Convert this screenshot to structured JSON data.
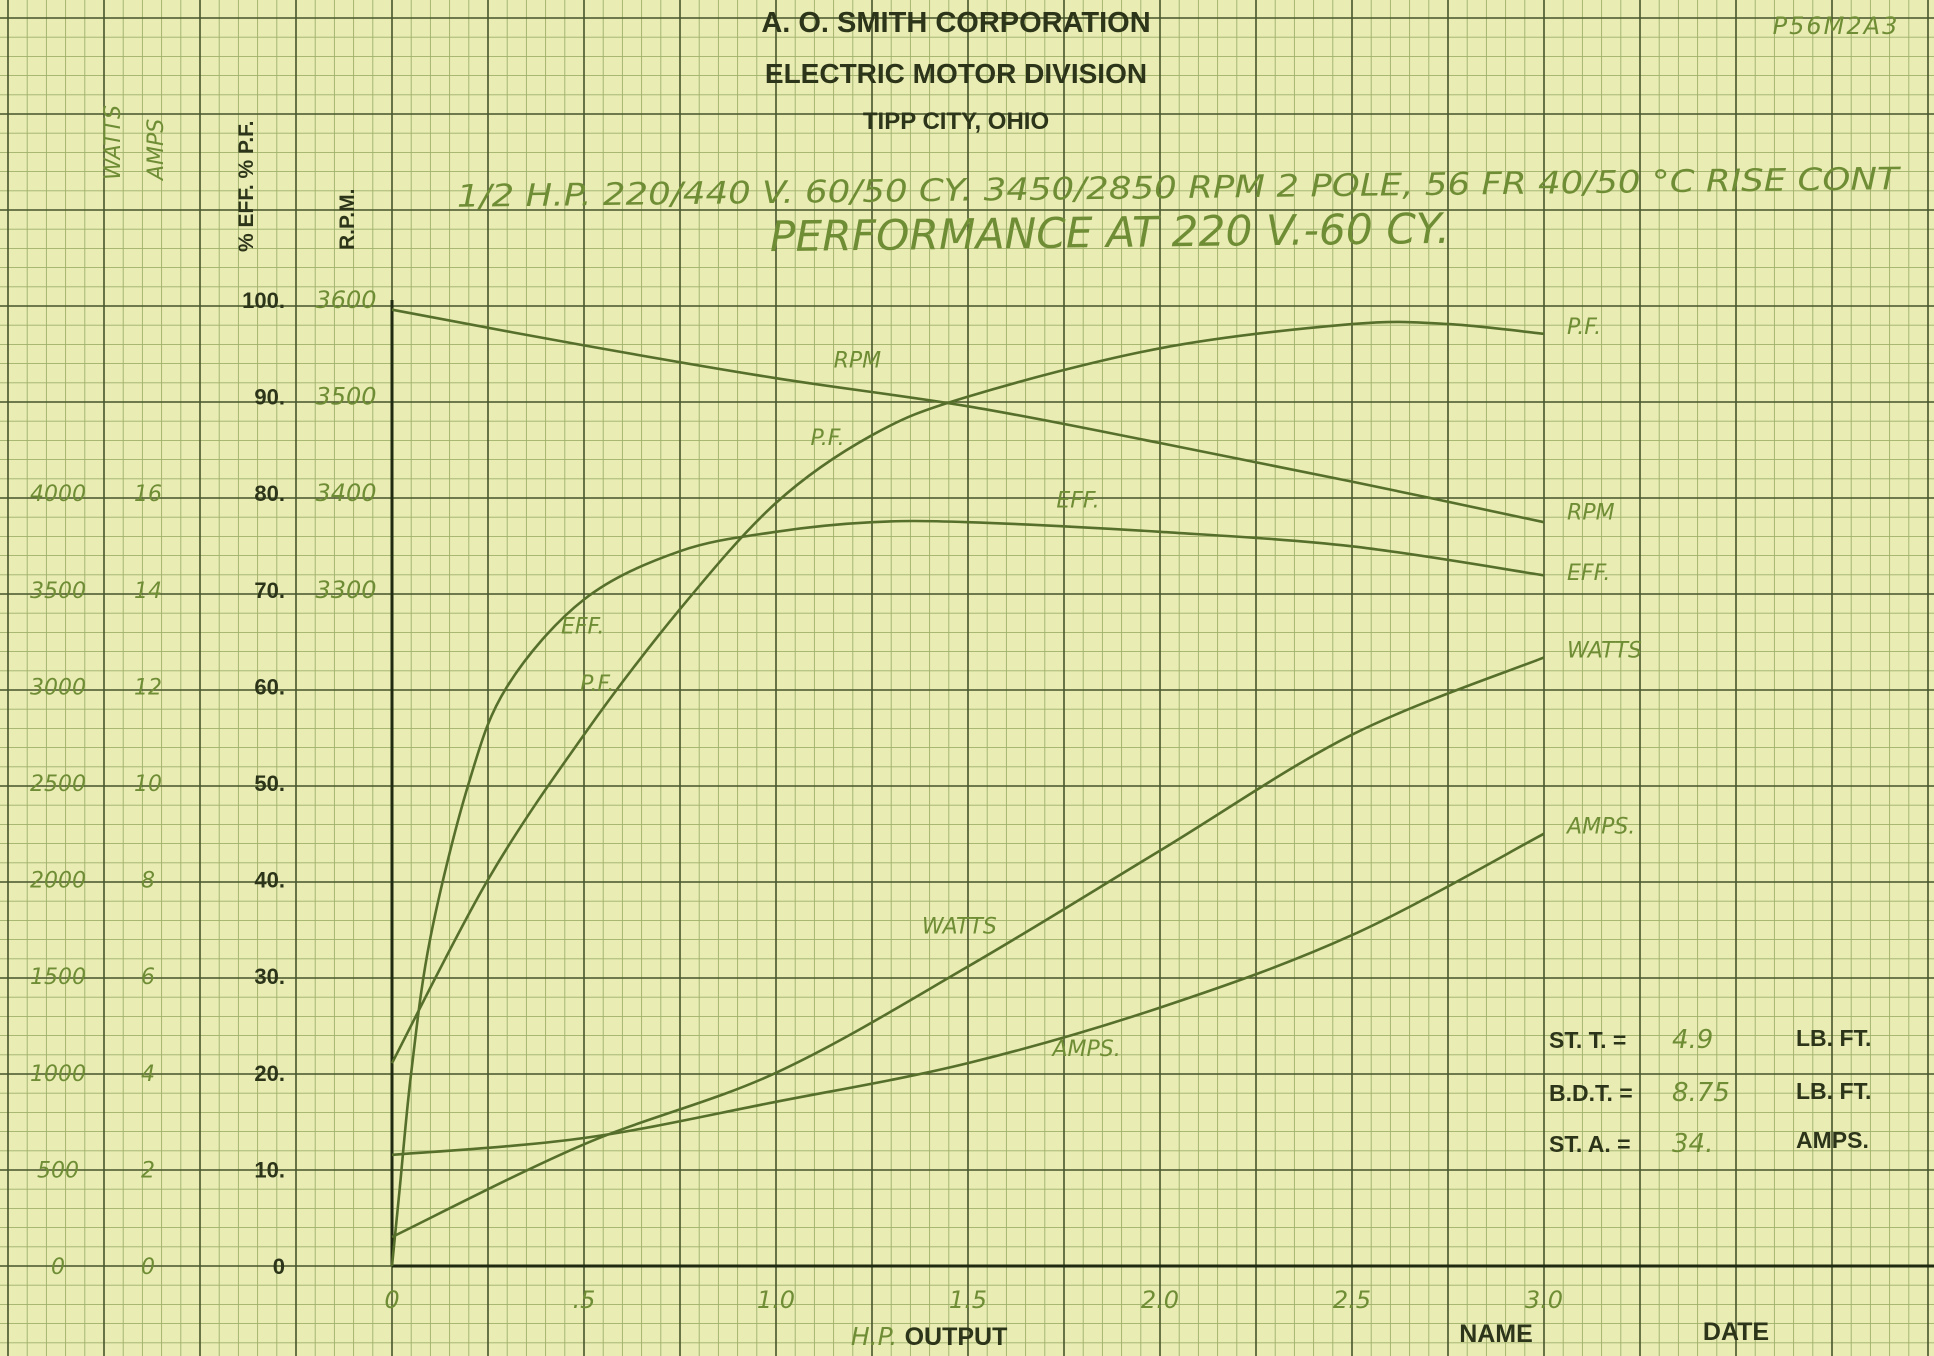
{
  "header": {
    "company": "A. O. SMITH CORPORATION",
    "division": "ELECTRIC MOTOR DIVISION",
    "location": "TIPP CITY, OHIO",
    "form_number": "P56M2A3",
    "spec_line": "1/2 H.P. 220/440 V. 60/50 CY. 3450/2850 RPM 2 POLE, 56 FR 40/50 °C RISE CONT",
    "performance_line": "PERFORMANCE AT 220 V.-60 CY."
  },
  "footer": {
    "output_prefix": "H.P.",
    "output_label": "OUTPUT",
    "name_label": "NAME",
    "date_label": "DATE"
  },
  "specs": {
    "st_t_label": "ST. T. =",
    "st_t_value": "4.9",
    "st_t_unit": "LB. FT.",
    "bdt_label": "B.D.T. =",
    "bdt_value": "8.75",
    "bdt_unit": "LB. FT.",
    "st_a_label": "ST. A. =",
    "st_a_value": "34.",
    "st_a_unit": "AMPS."
  },
  "colors": {
    "paper": "#e9ecb3",
    "grid_minor": "#9fb06a",
    "grid_major": "#47552a",
    "printed_ink": "#2c3519",
    "pencil_ink": "#6f8d35",
    "curve": "#566f2b"
  },
  "chart_data": {
    "type": "line",
    "xlabel": "OUTPUT",
    "x_axis": {
      "range": [
        0,
        3.0
      ],
      "ticks": [
        0,
        0.5,
        1.0,
        1.5,
        2.0,
        2.5,
        3.0
      ],
      "tick_labels": [
        "0",
        ".5",
        "1.0",
        "1.5",
        "2.0",
        "2.5",
        "3.0"
      ]
    },
    "y_axes": [
      {
        "id": "pct",
        "label": "% EFF. % P.F.",
        "range": [
          0,
          100
        ],
        "ticks": [
          0,
          10,
          20,
          30,
          40,
          50,
          60,
          70,
          80,
          90,
          100
        ],
        "tick_labels": [
          "0",
          "10.",
          "20.",
          "30.",
          "40.",
          "50.",
          "60.",
          "70.",
          "80.",
          "90.",
          "100."
        ]
      },
      {
        "id": "rpm",
        "label": "R.P.M.",
        "range": [
          2600,
          3600
        ],
        "ticks": [
          3300,
          3400,
          3500,
          3600
        ],
        "tick_labels": [
          "3300",
          "3400",
          "3500",
          "3600"
        ]
      },
      {
        "id": "amps",
        "label": "AMPS",
        "range": [
          0,
          40
        ],
        "ticks": [
          0,
          4,
          8,
          12,
          16,
          20,
          24,
          28,
          32
        ],
        "tick_labels": [
          "0",
          "2",
          "4",
          "6",
          "8",
          "10",
          "12",
          "14",
          "16"
        ]
      },
      {
        "id": "watts",
        "label": "WATTS",
        "range": [
          0,
          5000
        ],
        "ticks": [
          0,
          500,
          1000,
          1500,
          2000,
          2500,
          3000,
          3500,
          4000
        ],
        "tick_labels": [
          "0",
          "500",
          "1000",
          "1500",
          "2000",
          "2500",
          "3000",
          "3500",
          "4000"
        ]
      }
    ],
    "series": [
      {
        "name": "RPM",
        "axis": "rpm",
        "x": [
          0,
          0.5,
          1.0,
          1.5,
          2.0,
          2.5,
          3.0
        ],
        "y": [
          3590,
          3553,
          3519,
          3490,
          3452,
          3412,
          3370
        ],
        "labels": [
          {
            "text": "RPM",
            "at": [
              1.15,
              3530
            ]
          },
          {
            "text": "RPM",
            "at": [
              3.06,
              3373
            ]
          }
        ]
      },
      {
        "name": "P.F.",
        "axis": "pct",
        "x": [
          0,
          0.25,
          0.5,
          0.75,
          1.0,
          1.25,
          1.5,
          2.0,
          2.5,
          2.75,
          3.0
        ],
        "y": [
          21,
          40,
          55,
          68,
          79,
          86,
          90,
          95,
          97.5,
          97.5,
          96.5
        ],
        "labels": [
          {
            "text": "P.F.",
            "at": [
              1.09,
              85
            ]
          },
          {
            "text": "P.F.",
            "at": [
              0.49,
              59.5
            ]
          },
          {
            "text": "P.F.",
            "at": [
              3.06,
              96.5
            ]
          }
        ]
      },
      {
        "name": "EFF.",
        "axis": "pct",
        "x": [
          0,
          0.02,
          0.05,
          0.1,
          0.2,
          0.3,
          0.5,
          0.75,
          1.0,
          1.25,
          1.5,
          2.0,
          2.5,
          3.0
        ],
        "y": [
          0,
          8,
          20,
          34,
          50,
          60,
          69,
          74,
          76,
          77,
          77,
          76,
          74.5,
          71.5
        ],
        "labels": [
          {
            "text": "EFF.",
            "at": [
              1.73,
              78.5
            ]
          },
          {
            "text": "EFF.",
            "at": [
              0.44,
              65.5
            ]
          },
          {
            "text": "EFF.",
            "at": [
              3.06,
              71
            ]
          }
        ]
      },
      {
        "name": "WATTS",
        "axis": "watts",
        "x": [
          0,
          0.5,
          1.0,
          1.5,
          2.0,
          2.5,
          3.0
        ],
        "y": [
          150,
          630,
          1000,
          1550,
          2150,
          2750,
          3150
        ],
        "labels": [
          {
            "text": "WATTS",
            "at": [
              1.38,
              1720
            ]
          },
          {
            "text": "WATTS",
            "at": [
              3.06,
              3150
            ]
          }
        ]
      },
      {
        "name": "AMPS.",
        "axis": "amps",
        "x": [
          0,
          0.5,
          1.0,
          1.5,
          2.0,
          2.5,
          3.0
        ],
        "y": [
          4.6,
          5.3,
          6.8,
          8.4,
          10.7,
          13.7,
          17.9
        ],
        "labels": [
          {
            "text": "AMPS.",
            "at": [
              1.72,
              8.7
            ]
          },
          {
            "text": "AMPS.",
            "at": [
              3.06,
              17.9
            ]
          }
        ]
      }
    ]
  }
}
